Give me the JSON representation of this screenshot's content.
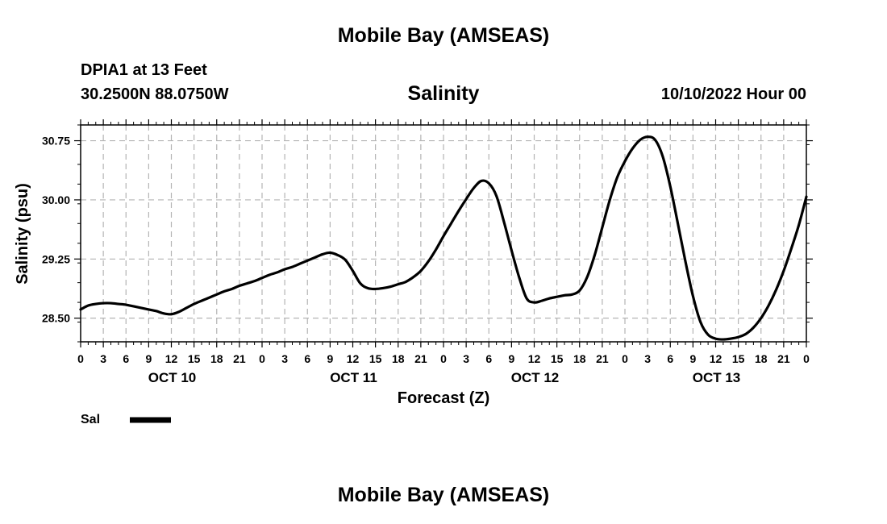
{
  "header": {
    "title": "Mobile Bay (AMSEAS)",
    "station": "DPIA1 at 13 Feet",
    "coordinates": "30.2500N  88.0750W",
    "run_time": "10/10/2022 Hour 00"
  },
  "footer": {
    "title": "Mobile Bay (AMSEAS)"
  },
  "chart_data": {
    "type": "line",
    "title": "Salinity",
    "xlabel": "Forecast (Z)",
    "ylabel": "Salinity (psu)",
    "ylim": [
      28.2,
      30.95
    ],
    "yticks": [
      "28.50",
      "29.25",
      "30.00",
      "30.75"
    ],
    "xlim": [
      0,
      96
    ],
    "xtick_hours": [
      0,
      3,
      6,
      9,
      12,
      15,
      18,
      21,
      24,
      27,
      30,
      33,
      36,
      39,
      42,
      45,
      48,
      51,
      54,
      57,
      60,
      63,
      66,
      69,
      72,
      75,
      78,
      81,
      84,
      87,
      90,
      93,
      96
    ],
    "xtick_labels": [
      "0",
      "3",
      "6",
      "9",
      "12",
      "15",
      "18",
      "21",
      "0",
      "3",
      "6",
      "9",
      "12",
      "15",
      "18",
      "21",
      "0",
      "3",
      "6",
      "9",
      "12",
      "15",
      "18",
      "21",
      "0",
      "3",
      "6",
      "9",
      "12",
      "15",
      "18",
      "21",
      "0"
    ],
    "day_labels": [
      {
        "hour": 12,
        "label": "OCT 10"
      },
      {
        "hour": 36,
        "label": "OCT 11"
      },
      {
        "hour": 60,
        "label": "OCT 12"
      },
      {
        "hour": 84,
        "label": "OCT 13"
      }
    ],
    "grid": true,
    "legend_position": "bottom-left",
    "series": [
      {
        "name": "Sal",
        "color": "#000000",
        "x": [
          0,
          1,
          2,
          3,
          4,
          5,
          6,
          7,
          8,
          9,
          10,
          11,
          12,
          13,
          14,
          15,
          16,
          17,
          18,
          19,
          20,
          21,
          22,
          23,
          24,
          25,
          26,
          27,
          28,
          29,
          30,
          31,
          32,
          33,
          34,
          35,
          36,
          37,
          38,
          39,
          40,
          41,
          42,
          43,
          44,
          45,
          46,
          47,
          48,
          49,
          50,
          51,
          52,
          53,
          54,
          55,
          56,
          57,
          58,
          59,
          60,
          61,
          62,
          63,
          64,
          65,
          66,
          67,
          68,
          69,
          70,
          71,
          72,
          73,
          74,
          75,
          76,
          77,
          78,
          79,
          80,
          81,
          82,
          83,
          84,
          85,
          86,
          87,
          88,
          89,
          90,
          91,
          92,
          93,
          94,
          95,
          96
        ],
        "y": [
          28.61,
          28.66,
          28.68,
          28.69,
          28.69,
          28.68,
          28.67,
          28.65,
          28.63,
          28.61,
          28.59,
          28.56,
          28.55,
          28.58,
          28.63,
          28.68,
          28.72,
          28.76,
          28.8,
          28.84,
          28.87,
          28.91,
          28.94,
          28.97,
          29.01,
          29.05,
          29.08,
          29.12,
          29.15,
          29.19,
          29.23,
          29.27,
          29.31,
          29.33,
          29.3,
          29.24,
          29.1,
          28.94,
          28.88,
          28.87,
          28.88,
          28.9,
          28.93,
          28.96,
          29.02,
          29.1,
          29.22,
          29.37,
          29.54,
          29.7,
          29.86,
          30.01,
          30.15,
          30.24,
          30.21,
          30.05,
          29.72,
          29.36,
          29.02,
          28.75,
          28.7,
          28.72,
          28.75,
          28.77,
          28.79,
          28.8,
          28.85,
          29.02,
          29.3,
          29.65,
          30.0,
          30.29,
          30.49,
          30.65,
          30.76,
          30.8,
          30.76,
          30.55,
          30.17,
          29.7,
          29.22,
          28.78,
          28.45,
          28.29,
          28.24,
          28.23,
          28.24,
          28.26,
          28.3,
          28.38,
          28.5,
          28.66,
          28.86,
          29.1,
          29.38,
          29.68,
          30.04
        ]
      }
    ]
  }
}
